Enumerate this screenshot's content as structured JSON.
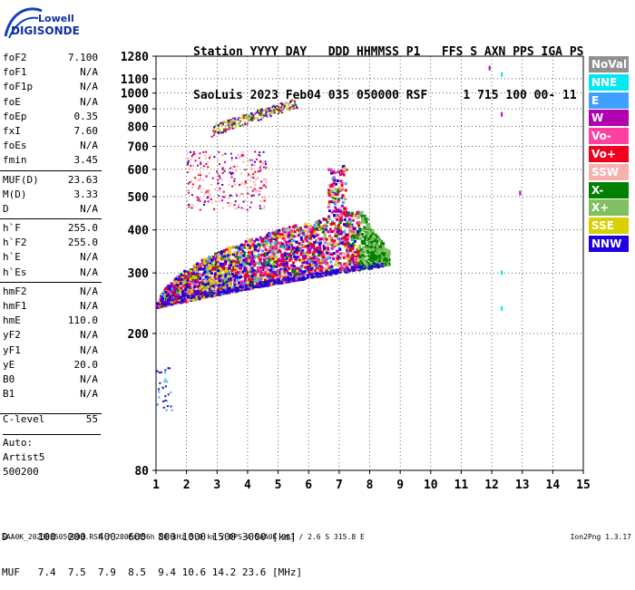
{
  "logo": {
    "line1": "Lowell",
    "line2": "DIGISONDE"
  },
  "header": {
    "labels": "Station YYYY DAY   DDD HHMMSS P1   FFS S AXN PPS IGA PS",
    "values": "SaoLuis 2023 Feb04 035 050000 RSF     1 715 100 00- 11"
  },
  "params": [
    {
      "label": "foF2",
      "value": "7.100"
    },
    {
      "label": "foF1",
      "value": "N/A"
    },
    {
      "label": "foF1p",
      "value": "N/A"
    },
    {
      "label": "foE",
      "value": "N/A"
    },
    {
      "label": "foEp",
      "value": "0.35"
    },
    {
      "label": "fxI",
      "value": "7.60"
    },
    {
      "label": "foEs",
      "value": "N/A"
    },
    {
      "label": "fmin",
      "value": "3.45"
    },
    {
      "divider": true
    },
    {
      "label": "MUF(D)",
      "value": "23.63"
    },
    {
      "label": "M(D)",
      "value": "3.33"
    },
    {
      "label": "D",
      "value": "N/A"
    },
    {
      "divider": true
    },
    {
      "label": "h`F",
      "value": "255.0"
    },
    {
      "label": "h`F2",
      "value": "255.0"
    },
    {
      "label": "h`E",
      "value": "N/A"
    },
    {
      "label": "h`Es",
      "value": "N/A"
    },
    {
      "divider": true
    },
    {
      "label": "hmF2",
      "value": "N/A"
    },
    {
      "label": "hmF1",
      "value": "N/A"
    },
    {
      "label": "hmE",
      "value": "110.0"
    },
    {
      "label": "yF2",
      "value": "N/A"
    },
    {
      "label": "yF1",
      "value": "N/A"
    },
    {
      "label": "yE",
      "value": "20.0"
    },
    {
      "label": "B0",
      "value": "N/A"
    },
    {
      "label": "B1",
      "value": "N/A"
    }
  ],
  "clevel": {
    "label": "C-level",
    "value": "55"
  },
  "auto": {
    "line1": "Auto:",
    "line2": "Artist5",
    "line3": "500200"
  },
  "legend": [
    {
      "label": "NoVal",
      "color": "#909090"
    },
    {
      "label": "NNE",
      "color": "#00e8f0"
    },
    {
      "label": "E",
      "color": "#40a0ff"
    },
    {
      "label": "W",
      "color": "#b000b0"
    },
    {
      "label": "Vo-",
      "color": "#ff40a0"
    },
    {
      "label": "Vo+",
      "color": "#f00020"
    },
    {
      "label": "SSW",
      "color": "#f8b0b0"
    },
    {
      "label": "X-",
      "color": "#008000"
    },
    {
      "label": "X+",
      "color": "#80c060"
    },
    {
      "label": "SSE",
      "color": "#d8d000"
    },
    {
      "label": "NNW",
      "color": "#2000e0"
    }
  ],
  "dmuf": {
    "d_line": "D     100  200  400  600  800 1000 1500 3000 [km]",
    "muf_line": "MUF   7.4  7.5  7.9  8.5  9.4 10.6 14.2 23.6 [MHz]"
  },
  "footer": {
    "text": "SAA0K_2023035050000.RSF / 280fx256h 50 kHz 5.0 km / DPS-4 SAA0K 903 / 2.6 S 315.8 E",
    "version": "Ion2Png 1.3.17"
  },
  "chart_data": {
    "type": "scatter",
    "xlim": [
      1,
      15
    ],
    "ylim": [
      80,
      1280
    ],
    "x_ticks": [
      1,
      2,
      3,
      4,
      5,
      6,
      7,
      8,
      9,
      10,
      11,
      12,
      13,
      14,
      15
    ],
    "y_ticks": [
      80,
      200,
      300,
      400,
      500,
      600,
      700,
      800,
      900,
      1000,
      1100,
      1280
    ],
    "y_scale": "log",
    "grid": true,
    "regions": [
      {
        "name": "F-trace",
        "x_range": [
          1.0,
          8.6
        ],
        "y_bottom": [
          240,
          320
        ],
        "y_top": [
          240,
          480
        ],
        "density": "dense"
      },
      {
        "name": "E-low",
        "x_range": [
          1.0,
          1.5
        ],
        "y_range": [
          120,
          160
        ],
        "density": "sparse"
      },
      {
        "name": "second-hop",
        "x_range": [
          2.0,
          4.6
        ],
        "y_range": [
          460,
          680
        ],
        "density": "medium"
      },
      {
        "name": "third-hop",
        "x_range": [
          2.8,
          5.6
        ],
        "y_range": [
          760,
          960
        ],
        "density": "medium"
      },
      {
        "name": "interference",
        "x_values": [
          11.9,
          12.3,
          12.3,
          12.9,
          12.3,
          12.3
        ],
        "y_values": [
          1200,
          1150,
          880,
          520,
          305,
          240
        ]
      }
    ]
  }
}
